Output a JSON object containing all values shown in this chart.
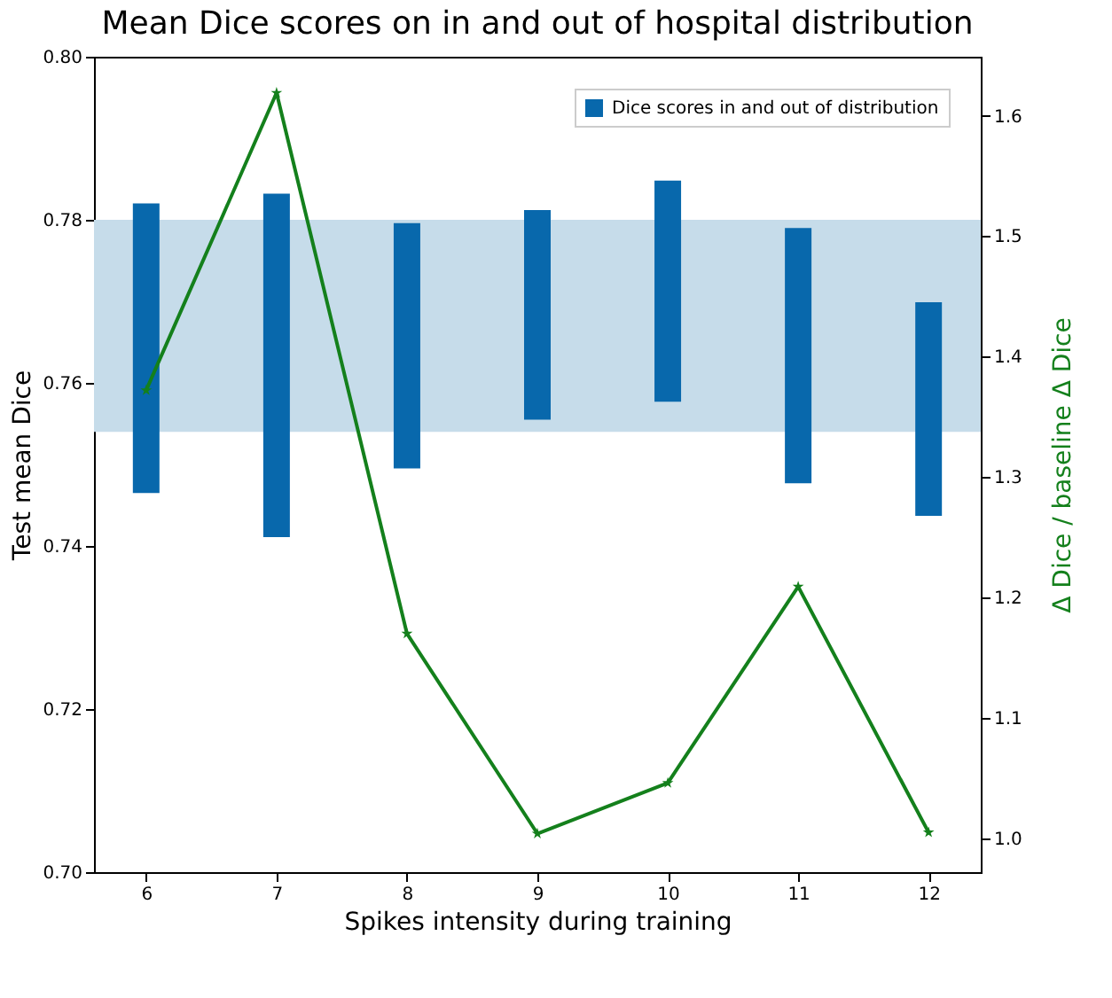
{
  "chart_data": {
    "type": "bar",
    "title": "Mean Dice scores on in and out of hospital distribution",
    "xlabel": "Spikes intensity during training",
    "ylabel": "Test mean Dice",
    "y2label": "Δ Dice / baseline  Δ Dice",
    "x": [
      6,
      7,
      8,
      9,
      10,
      11,
      12
    ],
    "xlim": [
      5.6,
      12.4
    ],
    "xticks": [
      6,
      7,
      8,
      9,
      10,
      11,
      12
    ],
    "ylim": [
      0.7,
      0.8
    ],
    "yticks": [
      {
        "value": 0.7,
        "label": "0.70"
      },
      0.72,
      0.74,
      0.76,
      0.78,
      {
        "value": 0.8,
        "label": "0.80"
      }
    ],
    "y2lim": [
      0.972,
      1.649
    ],
    "y2ticks": [
      {
        "value": 1.0,
        "label": "1.0"
      },
      1.1,
      1.2,
      1.3,
      1.4,
      1.5,
      1.6
    ],
    "series": [
      {
        "name": "Dice scores in and out of distribution",
        "color": "#0868ac",
        "base": [
          0.7465,
          0.7411,
          0.7495,
          0.7555,
          0.7577,
          0.7477,
          0.7437
        ],
        "values": [
          0.0355,
          0.0421,
          0.0301,
          0.0257,
          0.0271,
          0.0313,
          0.0262
        ]
      },
      {
        "type": "line",
        "axis": "y2",
        "color": "#14801c",
        "marker": "star",
        "line_style": "solid",
        "values": [
          1.372,
          1.619,
          1.17,
          1.004,
          1.046,
          1.209,
          1.005
        ]
      }
    ],
    "bands": [
      {
        "axis": "y",
        "from": 0.754,
        "to": 0.78,
        "color": "#c6dcea"
      }
    ],
    "legend": "top right",
    "grid": false
  }
}
